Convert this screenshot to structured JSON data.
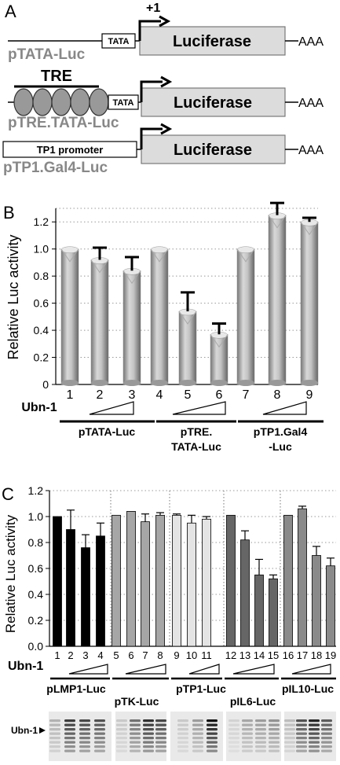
{
  "panel_a": {
    "letter": "A",
    "tss": "+1",
    "tata": "TATA",
    "luciferase": "Luciferase",
    "polya": "AAA",
    "tre": "TRE",
    "tp1_promoter": "TP1 promoter",
    "constructs": [
      "pTATA-Luc",
      "pTRE.TATA-Luc",
      "pTP1.Gal4-Luc"
    ]
  },
  "panel_b": {
    "letter": "B",
    "ubn_label": "Ubn-1",
    "groups": [
      {
        "line1": "pTATA-Luc",
        "line2": ""
      },
      {
        "line1": "pTRE.",
        "line2": "TATA-Luc"
      },
      {
        "line1": "pTP1.Gal4",
        "line2": "-Luc"
      }
    ]
  },
  "panel_c": {
    "letter": "C",
    "ubn_label": "Ubn-1",
    "blot_label": "Ubn-1",
    "groups": [
      "pLMP1-Luc",
      "pTK-Luc",
      "pTP1-Luc",
      "pIL6-Luc",
      "pIL10-Luc"
    ]
  },
  "chart_data": [
    {
      "type": "bar",
      "ylabel": "Relative Luc activity",
      "ylim": [
        0,
        1.3
      ],
      "yticks": [
        "0",
        "0.2",
        "0.4",
        "0.6",
        "0.8",
        "1.0",
        "1.2"
      ],
      "grid": true,
      "categories": [
        "1",
        "2",
        "3",
        "4",
        "5",
        "6",
        "7",
        "8",
        "9"
      ],
      "values": [
        1.0,
        0.92,
        0.84,
        1.0,
        0.54,
        0.37,
        1.0,
        1.25,
        1.2
      ],
      "errors": [
        0,
        0.09,
        0.1,
        0,
        0.14,
        0.08,
        0,
        0.09,
        0.03
      ],
      "bar_color": "#a8a8a8"
    },
    {
      "type": "bar",
      "ylabel": "Relative Luc activity",
      "ylim": [
        0,
        1.2
      ],
      "yticks": [
        "0.0",
        "0.2",
        "0.4",
        "0.6",
        "0.8",
        "1.0",
        "1.2"
      ],
      "grid": true,
      "categories": [
        "1",
        "2",
        "3",
        "4",
        "5",
        "6",
        "7",
        "8",
        "9",
        "10",
        "11",
        "12",
        "13",
        "14",
        "15",
        "16",
        "17",
        "18",
        "19"
      ],
      "values": [
        1.0,
        0.9,
        0.76,
        0.85,
        1.01,
        1.04,
        0.96,
        1.01,
        1.01,
        0.95,
        0.98,
        1.01,
        0.82,
        0.55,
        0.52,
        1.01,
        1.06,
        0.7,
        0.62
      ],
      "errors": [
        0,
        0.15,
        0.1,
        0.1,
        0,
        0,
        0.06,
        0.02,
        0.01,
        0.06,
        0.02,
        0,
        0.07,
        0.12,
        0.03,
        0,
        0.02,
        0.07,
        0.06
      ],
      "bar_colors": [
        "#000000",
        "#000000",
        "#000000",
        "#000000",
        "#a6a6a6",
        "#a6a6a6",
        "#a6a6a6",
        "#a6a6a6",
        "#e4e4e4",
        "#e4e4e4",
        "#e4e4e4",
        "#666666",
        "#666666",
        "#666666",
        "#666666",
        "#8a8a8a",
        "#8a8a8a",
        "#8a8a8a",
        "#8a8a8a"
      ]
    }
  ]
}
